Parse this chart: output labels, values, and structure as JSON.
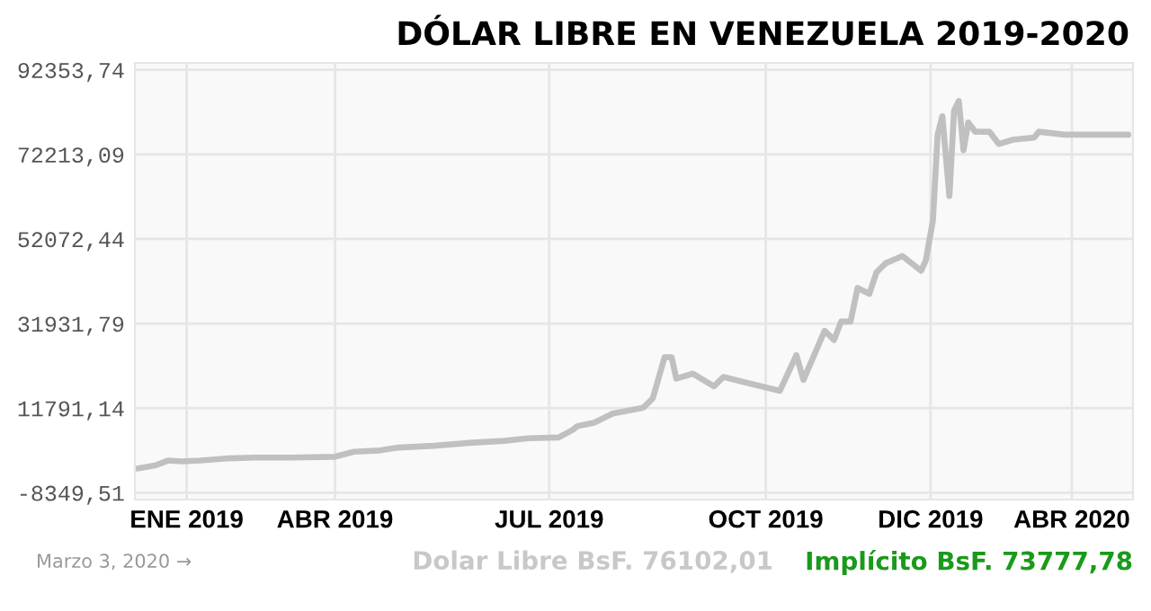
{
  "chart_data": {
    "type": "line",
    "title": "DÓLAR LIBRE EN VENEZUELA 2019-2020",
    "x": [
      "2019-01-07",
      "2019-01-15",
      "2019-01-20",
      "2019-01-26",
      "2019-02-03",
      "2019-02-14",
      "2019-02-26",
      "2019-03-13",
      "2019-04-01",
      "2019-04-09",
      "2019-04-20",
      "2019-04-28",
      "2019-05-13",
      "2019-05-28",
      "2019-06-12",
      "2019-06-22",
      "2019-07-05",
      "2019-07-11",
      "2019-07-13",
      "2019-07-20",
      "2019-07-28",
      "2019-08-10",
      "2019-08-14",
      "2019-08-19",
      "2019-08-22",
      "2019-08-24",
      "2019-08-31",
      "2019-09-09",
      "2019-09-13",
      "2019-09-21",
      "2019-10-07",
      "2019-10-14",
      "2019-10-17",
      "2019-10-26",
      "2019-10-30",
      "2019-11-02",
      "2019-11-06",
      "2019-11-09",
      "2019-11-14",
      "2019-11-17",
      "2019-11-21",
      "2019-11-28",
      "2019-12-06",
      "2019-12-08",
      "2019-12-11",
      "2019-12-13",
      "2019-12-15",
      "2019-12-18",
      "2019-12-20",
      "2019-12-22",
      "2019-12-24",
      "2019-12-26",
      "2019-12-29",
      "2020-01-04",
      "2020-01-08",
      "2020-01-14",
      "2020-01-23",
      "2020-01-25",
      "2020-02-05",
      "2020-03-03"
    ],
    "series": [
      {
        "color": "#c0c0c0",
        "values": [
          -2600,
          -1800,
          -700,
          -900,
          -700,
          -200,
          0,
          0,
          200,
          1400,
          1700,
          2400,
          2800,
          3500,
          4000,
          4600,
          4800,
          6600,
          7500,
          8300,
          10500,
          11900,
          14100,
          23900,
          23900,
          18800,
          20000,
          17000,
          19200,
          18100,
          15900,
          24400,
          18500,
          30200,
          28000,
          32400,
          32400,
          40400,
          39000,
          44100,
          46300,
          48000,
          44500,
          47000,
          56500,
          76900,
          81300,
          62300,
          82700,
          84900,
          73200,
          79800,
          77600,
          77600,
          74700,
          75700,
          76200,
          77600,
          76900,
          76900
        ]
      }
    ],
    "xlim": [
      "2019-01-06",
      "2020-03-05"
    ],
    "xticks": [
      {
        "value": "2019-01-28",
        "label": "ENE 2019"
      },
      {
        "value": "2019-04-01",
        "label": "ABR 2019"
      },
      {
        "value": "2019-07-01",
        "label": "JUL 2019"
      },
      {
        "value": "2019-10-01",
        "label": "OCT 2019"
      },
      {
        "value": "2019-12-10",
        "label": "DIC 2019"
      },
      {
        "value": "2020-02-08",
        "label": "ABR 2020"
      }
    ],
    "ylim": [
      -10000,
      94000
    ],
    "yticks": [
      {
        "value": -8349.51,
        "label": "-8349,51"
      },
      {
        "value": 11791.14,
        "label": "11791,14"
      },
      {
        "value": 31931.79,
        "label": "31931,79"
      },
      {
        "value": 52072.44,
        "label": "52072,44"
      },
      {
        "value": 72213.09,
        "label": "72213,09"
      },
      {
        "value": 92353.74,
        "label": "92353,74"
      }
    ],
    "grid": true,
    "marker": "none",
    "line_style": "solid",
    "annotations": [
      "Marzo 3, 2020 →",
      "Dolar Libre BsF. 76102,01",
      "Implícito BsF. 73777,78"
    ]
  }
}
